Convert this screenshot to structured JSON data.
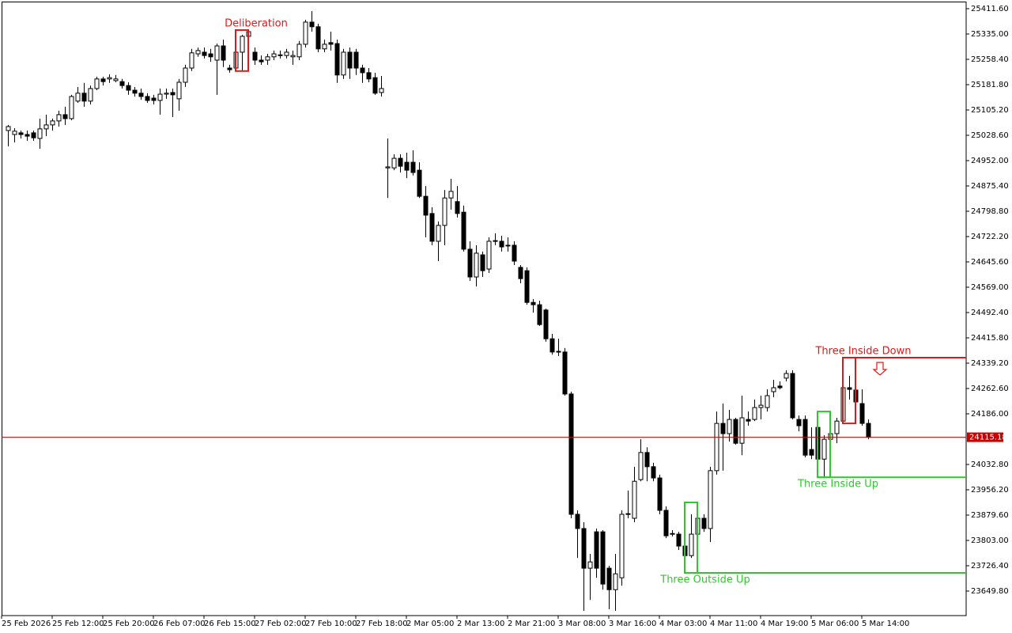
{
  "chart_data": {
    "type": "candlestick",
    "categories": [
      "25 Feb 2026",
      null,
      null,
      null,
      null,
      null,
      null,
      null,
      "25 Feb 12:00",
      null,
      null,
      null,
      null,
      null,
      null,
      null,
      "25 Feb 20:00",
      null,
      null,
      null,
      null,
      null,
      null,
      null,
      "26 Feb 07:00",
      null,
      null,
      null,
      null,
      null,
      null,
      null,
      "26 Feb 15:00",
      null,
      null,
      null,
      null,
      null,
      null,
      null,
      "27 Feb 02:00",
      null,
      null,
      null,
      null,
      null,
      null,
      null,
      "27 Feb 10:00",
      null,
      null,
      null,
      null,
      null,
      null,
      null,
      "27 Feb 18:00",
      null,
      null,
      null,
      null,
      null,
      null,
      null,
      "2 Mar 05:00",
      null,
      null,
      null,
      null,
      null,
      null,
      null,
      "2 Mar 13:00",
      null,
      null,
      null,
      null,
      null,
      null,
      null,
      "2 Mar 21:00",
      null,
      null,
      null,
      null,
      null,
      null,
      null,
      "3 Mar 08:00",
      null,
      null,
      null,
      null,
      null,
      null,
      null,
      "3 Mar 16:00",
      null,
      null,
      null,
      null,
      null,
      null,
      null,
      "4 Mar 03:00",
      null,
      null,
      null,
      null,
      null,
      null,
      null,
      "4 Mar 11:00",
      null,
      null,
      null,
      null,
      null,
      null,
      null,
      "4 Mar 19:00",
      null,
      null,
      null,
      null,
      null,
      null,
      null,
      "5 Mar 06:00",
      null,
      null,
      null,
      null,
      null,
      null,
      null,
      "5 Mar 14:00"
    ],
    "open": [
      25043,
      25031,
      25036,
      25031,
      25036,
      25019,
      25048,
      25060,
      25072,
      25091,
      25079,
      25132,
      25156,
      25132,
      25170,
      25199,
      25199,
      25194,
      25191,
      25179,
      25165,
      25156,
      25146,
      25141,
      25134,
      25153,
      25158,
      25139,
      25189,
      25232,
      25275,
      25280,
      25275,
      25256,
      25299,
      25232,
      25232,
      25280,
      25328,
      25280,
      25256,
      25256,
      25266,
      25270,
      25270,
      25266,
      25266,
      25304,
      25371,
      25357,
      25290,
      25309,
      25306,
      25211,
      25280,
      25280,
      25232,
      25218,
      25203,
      25158,
      24930,
      24930,
      24959,
      24947,
      24947,
      24923,
      24844,
      24792,
      24708,
      24756,
      24839,
      24828,
      24796,
      24684,
      24600,
      24667,
      24624,
      24708,
      24708,
      24696,
      24696,
      24629,
      24619,
      24523,
      24516,
      24500,
      24413,
      24373,
      24373,
      24246,
      23882,
      23839,
      23719,
      23829,
      23829,
      23719,
      23654,
      23690,
      23882,
      23870,
      23987,
      24069,
      24026,
      23992,
      23894,
      23822,
      23822,
      23786,
      23757,
      23822,
      23870,
      23839,
      24014,
      24157,
      24126,
      24169,
      24097,
      24169,
      24169,
      24205,
      24205,
      24253,
      24270,
      24294,
      24308,
      24169,
      24169,
      24078,
      24145,
      24049,
      24109,
      24126,
      24164,
      24265,
      24258,
      24217,
      24157
    ],
    "high": [
      25060,
      25050,
      25043,
      25043,
      25043,
      25079,
      25091,
      25079,
      25103,
      25115,
      25151,
      25175,
      25187,
      25179,
      25206,
      25206,
      25213,
      25211,
      25199,
      25189,
      25175,
      25170,
      25156,
      25151,
      25170,
      25170,
      25170,
      25199,
      25242,
      25290,
      25294,
      25294,
      25290,
      25306,
      25318,
      25242,
      25294,
      25333,
      25347,
      25294,
      25270,
      25275,
      25285,
      25285,
      25290,
      25285,
      25314,
      25378,
      25404,
      25366,
      25318,
      25342,
      25318,
      25290,
      25294,
      25290,
      25242,
      25232,
      25218,
      25208,
      25019,
      24971,
      24971,
      24976,
      24983,
      24947,
      24875,
      24811,
      24768,
      24863,
      24897,
      24875,
      24816,
      24708,
      24696,
      24677,
      24720,
      24732,
      24725,
      24720,
      24708,
      24636,
      24629,
      24533,
      24528,
      24504,
      24428,
      24413,
      24385,
      24253,
      23894,
      23858,
      23762,
      23839,
      23834,
      23726,
      23762,
      23894,
      23954,
      24026,
      24109,
      24085,
      24038,
      24002,
      23906,
      23834,
      23829,
      23798,
      23882,
      23918,
      23882,
      24026,
      24193,
      24217,
      24198,
      24174,
      24241,
      24193,
      24229,
      24241,
      24260,
      24289,
      24284,
      24318,
      24318,
      24181,
      24181,
      24145,
      24193,
      24121,
      24145,
      24174,
      24301,
      24301,
      24356,
      24260,
      24169
    ],
    "low": [
      24995,
      25007,
      25019,
      25012,
      25012,
      24988,
      25026,
      25043,
      25055,
      25060,
      25074,
      25127,
      25115,
      25122,
      25165,
      25179,
      25187,
      25189,
      25170,
      25151,
      25146,
      25136,
      25127,
      25122,
      25091,
      25139,
      25084,
      25103,
      25175,
      25223,
      25266,
      25261,
      25251,
      25151,
      25235,
      25218,
      25223,
      25223,
      25318,
      25242,
      25242,
      25242,
      25256,
      25261,
      25261,
      25242,
      25256,
      25294,
      25342,
      25280,
      25280,
      25285,
      25187,
      25199,
      25199,
      25211,
      25187,
      25189,
      25151,
      25146,
      24839,
      24923,
      24916,
      24899,
      24907,
      24839,
      24720,
      24696,
      24648,
      24696,
      24804,
      24780,
      24677,
      24588,
      24571,
      24600,
      24612,
      24696,
      24677,
      24677,
      24636,
      24581,
      24516,
      24492,
      24452,
      24404,
      24365,
      24361,
      24241,
      23870,
      23750,
      23590,
      23623,
      23690,
      23654,
      23595,
      23590,
      23666,
      23870,
      23858,
      23982,
      23982,
      23982,
      23882,
      23810,
      23815,
      23774,
      23705,
      23750,
      23774,
      23829,
      23798,
      24002,
      24014,
      24102,
      24093,
      24061,
      24150,
      24164,
      24169,
      24193,
      24236,
      24260,
      24284,
      24169,
      24133,
      24054,
      24049,
      23994,
      23994,
      24021,
      24097,
      24157,
      24229,
      24205,
      24150,
      24109
    ],
    "close": [
      25055,
      25041,
      25031,
      25026,
      25021,
      25048,
      25060,
      25072,
      25091,
      25079,
      25146,
      25156,
      25132,
      25170,
      25199,
      25191,
      25203,
      25199,
      25179,
      25165,
      25156,
      25146,
      25134,
      25134,
      25153,
      25156,
      25151,
      25189,
      25232,
      25278,
      25285,
      25270,
      25266,
      25299,
      25256,
      25227,
      25280,
      25328,
      25342,
      25256,
      25251,
      25266,
      25275,
      25272,
      25280,
      25270,
      25304,
      25371,
      25357,
      25290,
      25304,
      25304,
      25211,
      25280,
      25232,
      25232,
      25218,
      25199,
      25156,
      25170,
      24933,
      24959,
      24935,
      24923,
      24916,
      24844,
      24787,
      24708,
      24756,
      24839,
      24859,
      24792,
      24684,
      24600,
      24672,
      24619,
      24708,
      24710,
      24691,
      24694,
      24648,
      24595,
      24523,
      24516,
      24456,
      24413,
      24373,
      24375,
      24246,
      23882,
      23839,
      23719,
      23738,
      23719,
      23671,
      23654,
      23702,
      23882,
      23884,
      23982,
      24069,
      24026,
      23992,
      23894,
      23817,
      23824,
      23786,
      23757,
      23822,
      23870,
      23839,
      24014,
      24157,
      24126,
      24169,
      24097,
      24174,
      24164,
      24205,
      24212,
      24241,
      24265,
      24265,
      24308,
      24174,
      24150,
      24061,
      24061,
      24049,
      24109,
      24126,
      24164,
      24265,
      24260,
      24222,
      24157,
      24115.18
    ],
    "up_color": "#ffffff",
    "down_color": "#000000",
    "last_price_color": "#c80000",
    "ylim": [
      23575.6,
      25433.1
    ],
    "yticks": [
      {
        "value": 25411.6,
        "label": "25411.60"
      },
      {
        "value": 25335,
        "label": "25335.00"
      },
      {
        "value": 25258.4,
        "label": "25258.40"
      },
      {
        "value": 25181.8,
        "label": "25181.80"
      },
      {
        "value": 25105.2,
        "label": "25105.20"
      },
      {
        "value": 25028.6,
        "label": "25028.60"
      },
      {
        "value": 24952,
        "label": "24952.00"
      },
      {
        "value": 24875.4,
        "label": "24875.40"
      },
      {
        "value": 24798.8,
        "label": "24798.80"
      },
      {
        "value": 24722.2,
        "label": "24722.20"
      },
      {
        "value": 24645.6,
        "label": "24645.60"
      },
      {
        "value": 24569,
        "label": "24569.00"
      },
      {
        "value": 24492.4,
        "label": "24492.40"
      },
      {
        "value": 24415.8,
        "label": "24415.80"
      },
      {
        "value": 24339.2,
        "label": "24339.20"
      },
      {
        "value": 24262.6,
        "label": "24262.60"
      },
      {
        "value": 24186,
        "label": "24186.00"
      },
      {
        "value": 24032.8,
        "label": "24032.80"
      },
      {
        "value": 23956.2,
        "label": "23956.20"
      },
      {
        "value": 23879.6,
        "label": "23879.60"
      },
      {
        "value": 23803,
        "label": "23803.00"
      },
      {
        "value": 23726.4,
        "label": "23726.40"
      },
      {
        "value": 23649.8,
        "label": "23649.80"
      }
    ],
    "patterns": [
      {
        "label": "Deliberation",
        "candles": [
          36,
          38
        ],
        "color": "#e01818"
      },
      {
        "label": "Three Inside Down",
        "candles": [
          132,
          134
        ],
        "color": "#e01818",
        "level": "high",
        "arrow": "down"
      },
      {
        "label": "Three Inside Up",
        "candles": [
          128,
          130
        ],
        "color": "#2ec82e",
        "level": "low"
      },
      {
        "label": "Three Outside Up",
        "candles": [
          107,
          109
        ],
        "color": "#2ec82e",
        "level": "low"
      }
    ]
  }
}
